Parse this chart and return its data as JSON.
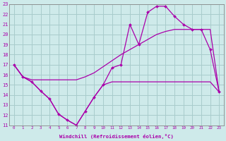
{
  "xlabel": "Windchill (Refroidissement éolien,°C)",
  "xlim": [
    -0.5,
    23.5
  ],
  "ylim": [
    11,
    23
  ],
  "yticks": [
    11,
    12,
    13,
    14,
    15,
    16,
    17,
    18,
    19,
    20,
    21,
    22,
    23
  ],
  "xticks": [
    0,
    1,
    2,
    3,
    4,
    5,
    6,
    7,
    8,
    9,
    10,
    11,
    12,
    13,
    14,
    15,
    16,
    17,
    18,
    19,
    20,
    21,
    22,
    23
  ],
  "bg_color": "#ceeaea",
  "grid_color": "#a8cccc",
  "line_color": "#aa00aa",
  "line1_x": [
    0,
    1,
    2,
    3,
    4,
    5,
    6,
    7,
    8,
    9,
    10,
    11,
    12,
    13,
    14,
    15,
    16,
    17,
    18,
    19,
    20,
    21,
    22,
    23
  ],
  "line1_y": [
    17.0,
    15.8,
    15.3,
    14.4,
    13.6,
    12.1,
    11.5,
    11.0,
    12.4,
    13.8,
    15.0,
    15.3,
    15.3,
    15.3,
    15.3,
    15.3,
    15.3,
    15.3,
    15.3,
    15.3,
    15.3,
    15.3,
    15.3,
    14.3
  ],
  "line2_x": [
    0,
    1,
    2,
    3,
    4,
    5,
    6,
    7,
    8,
    9,
    10,
    11,
    12,
    13,
    14,
    15,
    16,
    17,
    18,
    19,
    20,
    21,
    22,
    23
  ],
  "line2_y": [
    17.0,
    15.8,
    15.5,
    15.5,
    15.5,
    15.5,
    15.5,
    15.5,
    15.8,
    16.2,
    16.8,
    17.4,
    18.0,
    18.5,
    19.0,
    19.5,
    20.0,
    20.3,
    20.5,
    20.5,
    20.5,
    20.5,
    20.5,
    14.3
  ],
  "line3_x": [
    0,
    1,
    2,
    3,
    4,
    5,
    6,
    7,
    8,
    9,
    10,
    11,
    12,
    13,
    14,
    15,
    16,
    17,
    18,
    19,
    20,
    21,
    22,
    23
  ],
  "line3_y": [
    17.0,
    15.8,
    15.3,
    14.4,
    13.6,
    12.1,
    11.5,
    11.0,
    12.4,
    13.8,
    15.0,
    16.7,
    17.0,
    21.0,
    19.0,
    22.2,
    22.8,
    22.8,
    21.8,
    21.0,
    20.5,
    20.5,
    18.5,
    14.3
  ]
}
